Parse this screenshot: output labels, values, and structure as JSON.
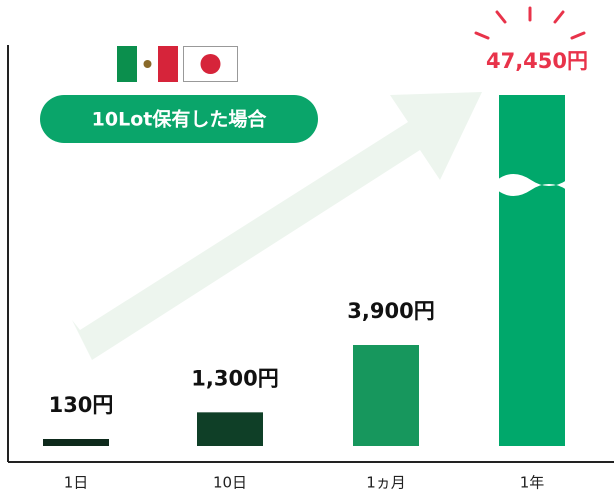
{
  "chart_data": {
    "type": "bar",
    "subtitle": "10Lot保有した場合",
    "categories": [
      "1日",
      "10日",
      "1ヵ月",
      "1年"
    ],
    "values": [
      130,
      1300,
      3900,
      47450
    ],
    "value_labels": [
      "130円",
      "1,300円",
      "3,900円",
      "47,450円"
    ],
    "colors": [
      "#0e2a1c",
      "#0f3f27",
      "#17975d",
      "#00a86b"
    ],
    "label_colors": [
      "#111111",
      "#111111",
      "#111111",
      "#e8334a"
    ]
  }
}
